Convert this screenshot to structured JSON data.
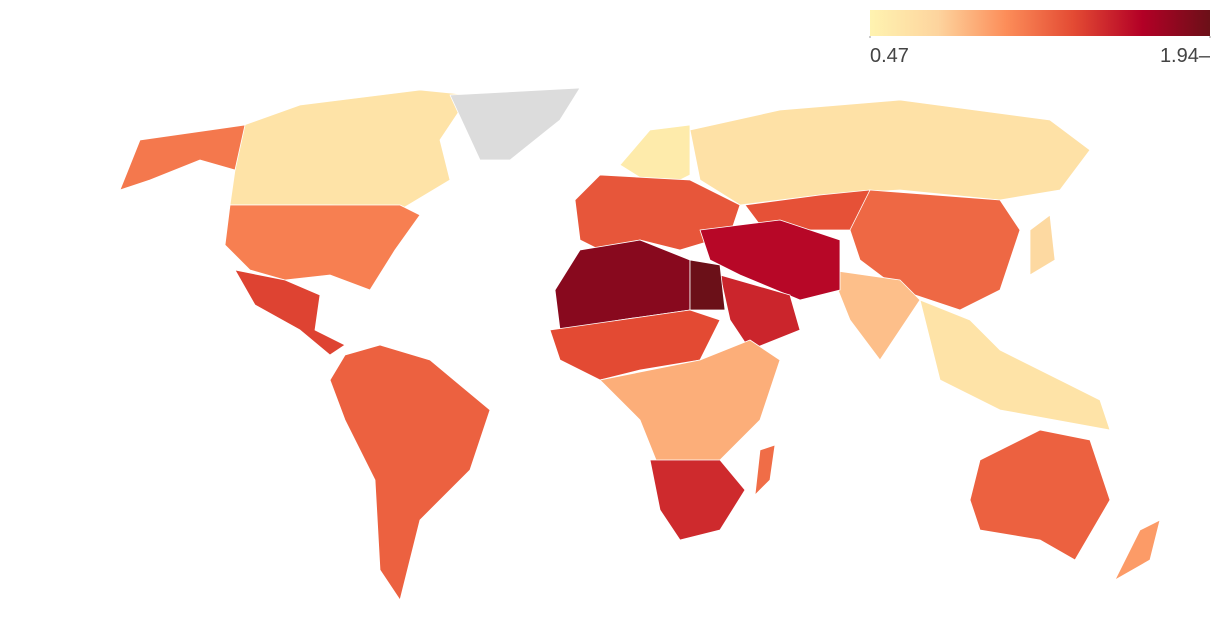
{
  "chart_data": {
    "type": "choropleth",
    "values": [
      0.62,
      1.15,
      1.12,
      1.38,
      1.25,
      null,
      0.64,
      0.55,
      1.3,
      1.32,
      1.22,
      0.72,
      0.85,
      0.62,
      1.62,
      1.5,
      1.82,
      1.94,
      1.35,
      0.92,
      1.48,
      1.2,
      1.25,
      1.0
    ],
    "colorscale": [
      "#fff3b0",
      "#fdd49e",
      "#fc8d59",
      "#e34a33",
      "#b30026",
      "#6b1018"
    ],
    "null_color": "#dcdcdc",
    "clim": [
      0.47,
      1.94
    ],
    "cticks": [
      0.47,
      {
        "value": 1.94,
        "label": "1.94–"
      }
    ]
  }
}
